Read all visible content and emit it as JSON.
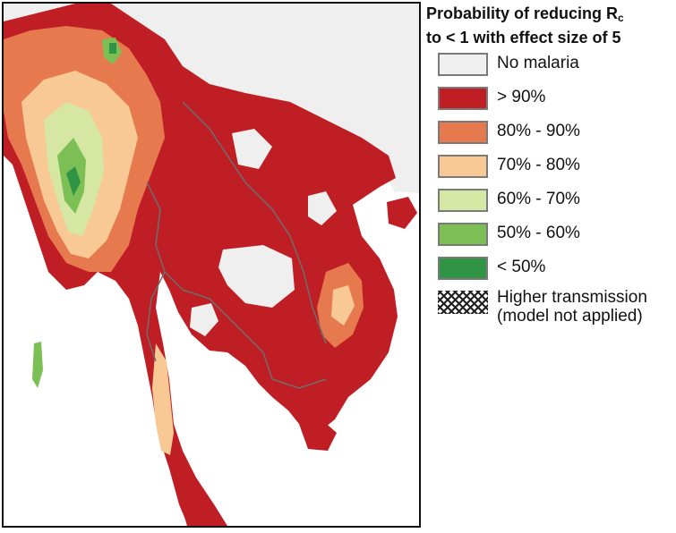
{
  "legend": {
    "title_line1": "Probability of reducing R",
    "title_sub": "c",
    "title_line2": "to < 1 with effect size of 5",
    "items": [
      {
        "label": "No malaria",
        "color": "#efefef"
      },
      {
        "label": "> 90%",
        "color": "#bf1e24"
      },
      {
        "label": "80% - 90%",
        "color": "#e67a4e"
      },
      {
        "label": "70% - 80%",
        "color": "#f8c995"
      },
      {
        "label": "60% - 70%",
        "color": "#d6e6a3"
      },
      {
        "label": "50% - 60%",
        "color": "#7bbf55"
      },
      {
        "label": "< 50%",
        "color": "#2f9444"
      },
      {
        "label": "Higher transmission",
        "label2": "(model not applied)",
        "color": "hatch"
      }
    ]
  },
  "map": {
    "colors": {
      "sea": "#ffffff",
      "no_malaria": "#efefef",
      "border": "#6e6e6e"
    }
  }
}
